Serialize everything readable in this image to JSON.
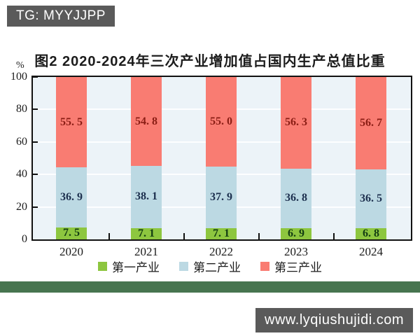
{
  "watermarks": {
    "top": "TG: MYYJJPP",
    "bottom": "www.lyqiushujidi.com"
  },
  "colors": {
    "badge_bg": "#5a5a5a",
    "badge_text": "#ffffff",
    "divider_band": "#47754f",
    "plot_background": "#ecf3f8",
    "axis": "#111111"
  },
  "chart_data": {
    "type": "bar",
    "stacked": true,
    "title": "图2  2020-2024年三次产业增加值占国内生产总值比重",
    "categories": [
      "2020",
      "2021",
      "2022",
      "2023",
      "2024"
    ],
    "series": [
      {
        "name": "第一产业",
        "color": "#8dc63f",
        "label_color": "#123c12",
        "values": [
          7.5,
          7.1,
          7.1,
          6.9,
          6.8
        ]
      },
      {
        "name": "第二产业",
        "color": "#bcd9e3",
        "label_color": "#1c2f4e",
        "values": [
          36.9,
          38.1,
          37.9,
          36.8,
          36.5
        ]
      },
      {
        "name": "第三产业",
        "color": "#f97c72",
        "label_color": "#8a1d14",
        "values": [
          55.5,
          54.8,
          55.0,
          56.3,
          56.7
        ]
      }
    ],
    "ylabel": "%",
    "yticks": [
      0,
      20,
      40,
      60,
      80,
      100
    ],
    "ylim": [
      0,
      100
    ],
    "grid": "horizontal-white",
    "legend_position": "bottom",
    "value_label_format": "one-decimal-with-space"
  }
}
